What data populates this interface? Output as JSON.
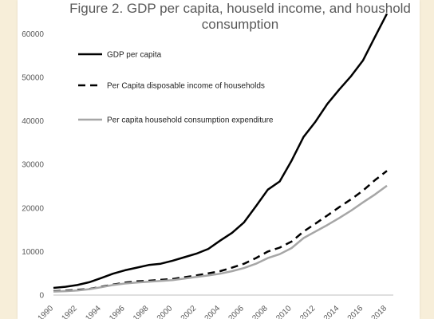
{
  "chart_data": {
    "type": "line",
    "title_line1": "Figure 2. GDP per capita, houseld income, and houshold",
    "title_line2": "consumption",
    "x": [
      1990,
      1991,
      1992,
      1993,
      1994,
      1995,
      1996,
      1997,
      1998,
      1999,
      2000,
      2001,
      2002,
      2003,
      2004,
      2005,
      2006,
      2007,
      2008,
      2009,
      2010,
      2011,
      2012,
      2013,
      2014,
      2015,
      2016,
      2017,
      2018
    ],
    "x_tick_labels": [
      "1990",
      "1992",
      "1994",
      "1996",
      "1998",
      "2000",
      "2002",
      "2004",
      "2006",
      "2008",
      "2010",
      "2012",
      "2014",
      "2016",
      "2018"
    ],
    "y_tick_labels": [
      "0",
      "10000",
      "20000",
      "30000",
      "40000",
      "50000",
      "60000"
    ],
    "ylim": [
      0,
      65000
    ],
    "xlim": [
      1990,
      2018
    ],
    "grid": false,
    "legend_position": "top-left",
    "series": [
      {
        "name": "GDP per capita",
        "color": "#000000",
        "style": "solid",
        "values": [
          1650,
          1900,
          2300,
          2950,
          3900,
          4900,
          5700,
          6300,
          6900,
          7200,
          7900,
          8700,
          9500,
          10600,
          12500,
          14300,
          16700,
          20400,
          24200,
          26100,
          30900,
          36300,
          39800,
          43900,
          47200,
          50300,
          53900,
          59300,
          64600
        ]
      },
      {
        "name": "Per Capita disposable income of households",
        "color": "#000000",
        "style": "dashed",
        "values": [
          900,
          1000,
          1200,
          1400,
          1900,
          2400,
          2850,
          3150,
          3300,
          3500,
          3700,
          4100,
          4500,
          5000,
          5500,
          6300,
          7200,
          8500,
          10000,
          10900,
          12300,
          14600,
          16400,
          18300,
          20200,
          22000,
          24000,
          26400,
          28500
        ]
      },
      {
        "name": "Per capita household consumption expenditure",
        "color": "#a6a6a6",
        "style": "solid",
        "values": [
          800,
          900,
          1050,
          1350,
          1800,
          2300,
          2650,
          2900,
          3050,
          3250,
          3450,
          3800,
          4150,
          4500,
          4900,
          5500,
          6200,
          7200,
          8500,
          9400,
          10800,
          13100,
          14600,
          16100,
          17700,
          19400,
          21300,
          23100,
          25100
        ]
      }
    ]
  }
}
